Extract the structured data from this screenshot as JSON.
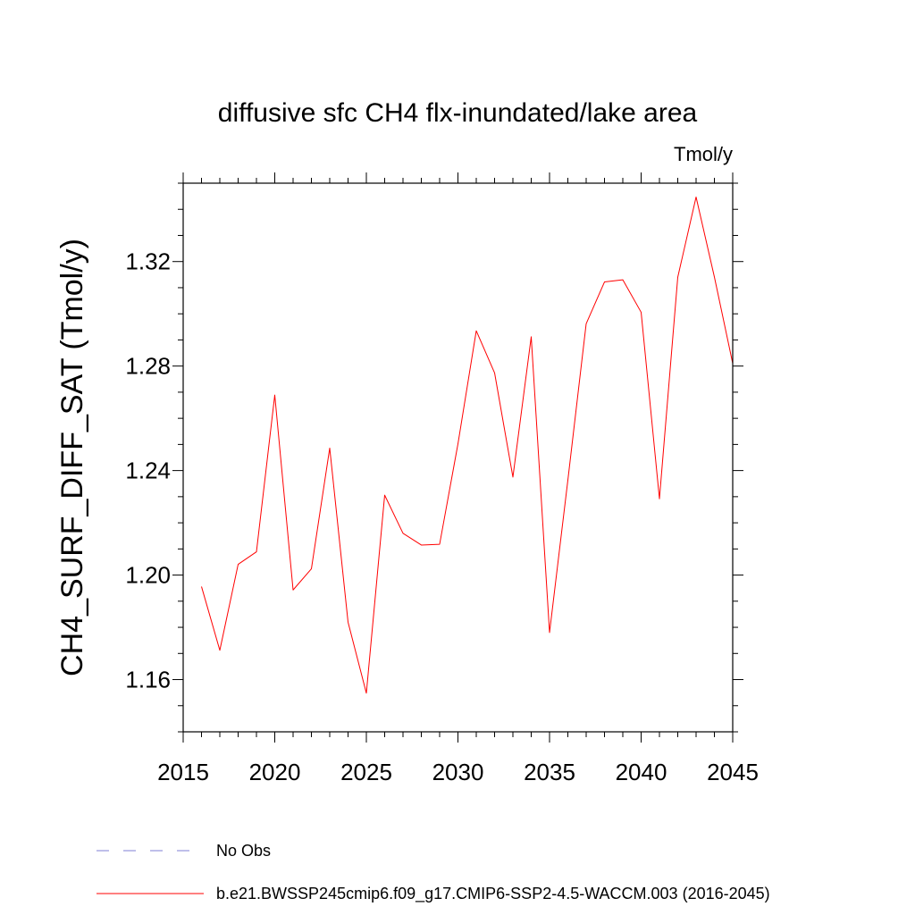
{
  "chart_data": {
    "type": "line",
    "title": "diffusive sfc CH4 flx-inundated/lake area",
    "units": "Tmol/y",
    "ylabel": "CH4_SURF_DIFF_SAT  (Tmol/y)",
    "xlabel": "",
    "xlim": [
      2015,
      2045
    ],
    "ylim": [
      1.14,
      1.35
    ],
    "xticks": [
      2015,
      2020,
      2025,
      2030,
      2035,
      2040,
      2045
    ],
    "xtick_labels": [
      "2015",
      "2020",
      "2025",
      "2030",
      "2035",
      "2040",
      "2045"
    ],
    "yticks": [
      1.16,
      1.2,
      1.24,
      1.28,
      1.32
    ],
    "ytick_labels": [
      "1.16",
      "1.20",
      "1.24",
      "1.28",
      "1.32"
    ],
    "series": [
      {
        "name": "b.e21.BWSSP245cmip6.f09_g17.CMIP6-SSP2-4.5-WACCM.003 (2016-2045)",
        "color": "#ff0000",
        "x": [
          2016,
          2017,
          2018,
          2019,
          2020,
          2021,
          2022,
          2023,
          2024,
          2025,
          2026,
          2027,
          2028,
          2029,
          2030,
          2031,
          2032,
          2033,
          2034,
          2035,
          2036,
          2037,
          2038,
          2039,
          2040,
          2041,
          2042,
          2043,
          2044,
          2045
        ],
        "values": [
          1.1956,
          1.1712,
          1.2041,
          1.2089,
          1.2689,
          1.1943,
          1.2024,
          1.2486,
          1.182,
          1.1548,
          1.2306,
          1.216,
          1.2115,
          1.2118,
          1.2502,
          1.2935,
          1.2774,
          1.2375,
          1.2912,
          1.178,
          1.2363,
          1.2962,
          1.3122,
          1.313,
          1.3006,
          1.2292,
          1.314,
          1.3447,
          1.3141,
          1.281
        ]
      }
    ],
    "legend": [
      {
        "label": "No Obs",
        "style": "dashed",
        "color": "#7f7fd6"
      },
      {
        "label": "b.e21.BWSSP245cmip6.f09_g17.CMIP6-SSP2-4.5-WACCM.003 (2016-2045)",
        "style": "solid",
        "color": "#ff0000"
      }
    ]
  }
}
